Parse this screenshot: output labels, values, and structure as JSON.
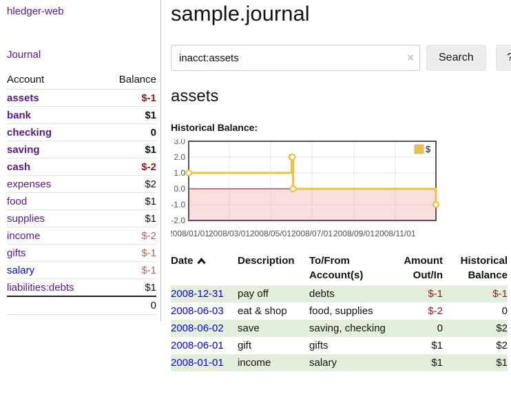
{
  "colors": {
    "link_visited_purple": "#551a8b",
    "link_unvisited_blue": "#0000ee",
    "negative_strong": "#8c1c1c",
    "negative_soft": "#b26262",
    "row_stripe_green": "#e3efda",
    "series_gold": "#edc240",
    "chart_border": "#545454",
    "chart_grid": "#e5e5e5",
    "chart_zero_line": "#8b0000",
    "chart_negative_fill": "#f6bcbc",
    "button_bg": "#ececec"
  },
  "sidebar": {
    "brand": "hledger-web",
    "journal_label": "Journal",
    "headers": {
      "account": "Account",
      "balance": "Balance"
    },
    "accounts": [
      {
        "name": "assets",
        "level": 1,
        "bold": true,
        "balance": "$-1",
        "balance_class": "neg"
      },
      {
        "name": "bank",
        "level": 2,
        "bold": true,
        "balance": "$1",
        "balance_class": ""
      },
      {
        "name": "checking",
        "level": 3,
        "bold": true,
        "balance": "0",
        "balance_class": ""
      },
      {
        "name": "saving",
        "level": 3,
        "bold": true,
        "balance": "$1",
        "balance_class": ""
      },
      {
        "name": "cash",
        "level": 2,
        "bold": true,
        "balance": "$-2",
        "balance_class": "neg"
      },
      {
        "name": "expenses",
        "level": 1,
        "bold": false,
        "balance": "$2",
        "balance_class": ""
      },
      {
        "name": "food",
        "level": 2,
        "bold": false,
        "balance": "$1",
        "balance_class": ""
      },
      {
        "name": "supplies",
        "level": 2,
        "bold": false,
        "balance": "$1",
        "balance_class": ""
      },
      {
        "name": "income",
        "level": 1,
        "bold": false,
        "balance": "$-2",
        "balance_class": "neg-soft"
      },
      {
        "name": "gifts",
        "level": 2,
        "bold": false,
        "balance": "$-1",
        "balance_class": "neg-soft"
      },
      {
        "name": "salary",
        "level": 2,
        "bold": false,
        "balance": "$-1",
        "balance_class": "neg-soft",
        "link_class": "unvisited"
      },
      {
        "name": "liabilities:debts",
        "level": 1,
        "bold": false,
        "balance": "$1",
        "balance_class": ""
      }
    ],
    "total": "0"
  },
  "main": {
    "title": "sample.journal",
    "search": {
      "value": "inacct:assets",
      "clear_glyph": "×",
      "button_label": "Search",
      "help_label": "?"
    },
    "account_heading": "assets",
    "chart_label": "Historical Balance:"
  },
  "chart_data": {
    "type": "line",
    "step": true,
    "title": "Historical Balance",
    "series": [
      {
        "name": "$",
        "color": "#edc240",
        "points": [
          [
            "2008/01/01",
            1
          ],
          [
            "2008/06/01",
            2
          ],
          [
            "2008/06/02",
            2
          ],
          [
            "2008/06/03",
            0
          ],
          [
            "2008/12/31",
            -1
          ]
        ]
      }
    ],
    "ylim": [
      -2,
      3
    ],
    "yticks": [
      "3.0",
      "2.0",
      "1.0",
      "0.0",
      "-1.0",
      "-2.0"
    ],
    "ytick_values": [
      3,
      2,
      1,
      0,
      -1,
      -2
    ],
    "xticks": [
      "2008/01/01",
      "2008/03/01",
      "2008/05/01",
      "2008/07/01",
      "2008/09/01",
      "2008/11/01"
    ],
    "xrange": [
      "2008/01/01",
      "2008/12/31"
    ],
    "grid": true,
    "legend_position": "top-right",
    "legend_label": "$"
  },
  "register": {
    "headers": {
      "date": "Date",
      "description": "Description",
      "account": "To/From Account(s)",
      "amount": "Amount Out/In",
      "balance": "Historical Balance"
    },
    "rows": [
      {
        "date": "2008-12-31",
        "description": "pay off",
        "account": "debts",
        "amount": "$-1",
        "balance": "$-1",
        "amount_neg": true,
        "balance_neg": true
      },
      {
        "date": "2008-06-03",
        "description": "eat & shop",
        "account": "food, supplies",
        "amount": "$-2",
        "balance": "0",
        "amount_neg": true,
        "balance_neg": false
      },
      {
        "date": "2008-06-02",
        "description": "save",
        "account": "saving, checking",
        "amount": "0",
        "balance": "$2",
        "amount_neg": false,
        "balance_neg": false
      },
      {
        "date": "2008-06-01",
        "description": "gift",
        "account": "gifts",
        "amount": "$1",
        "balance": "$2",
        "amount_neg": false,
        "balance_neg": false
      },
      {
        "date": "2008-01-01",
        "description": "income",
        "account": "salary",
        "amount": "$1",
        "balance": "$1",
        "amount_neg": false,
        "balance_neg": false
      }
    ]
  }
}
